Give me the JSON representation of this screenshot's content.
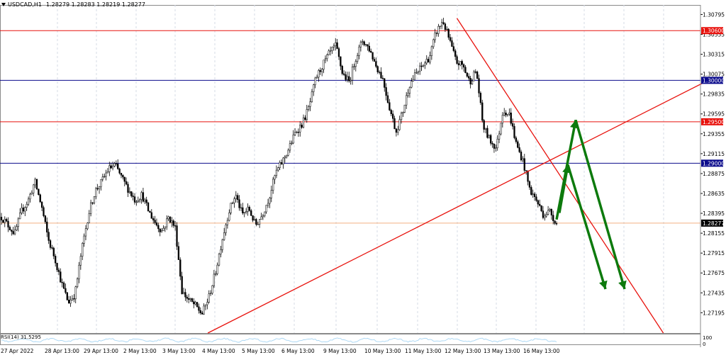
{
  "header": {
    "symbol_tf": "USDCAD,H1",
    "ohlc": "1.28279 1.28283 1.28219 1.28277"
  },
  "indicator": {
    "label": "RSI(14) 31.5295",
    "axis_top": "100",
    "axis_bottom": "0"
  },
  "colors": {
    "candle": "#000000",
    "red_line": "#e8130e",
    "blue_line": "#0b0b8c",
    "arrow": "#0d7a0d",
    "bid_line": "#f4b183",
    "rsi_line": "#a7d5f3",
    "grid": "#d6dbe4",
    "frame": "#8a8a8a"
  },
  "chart_data": {
    "type": "candlestick",
    "symbol": "USDCAD",
    "timeframe": "H1",
    "ylim": [
      1.2695,
      1.3091
    ],
    "y_ticks": [
      "1.30795",
      "1.30555",
      "1.30315",
      "1.30075",
      "1.29835",
      "1.29595",
      "1.29355",
      "1.29115",
      "1.28875",
      "1.28635",
      "1.28395",
      "1.28155",
      "1.27915",
      "1.27675",
      "1.27435",
      "1.27195"
    ],
    "x_ticks": [
      "27 Apr 2022",
      "28 Apr 13:00",
      "29 Apr 13:00",
      "2 May 13:00",
      "3 May 13:00",
      "4 May 13:00",
      "5 May 13:00",
      "6 May 13:00",
      "9 May 13:00",
      "10 May 13:00",
      "11 May 13:00",
      "12 May 13:00",
      "13 May 13:00",
      "16 May 13:00"
    ],
    "close_path": [
      1.2835,
      1.2825,
      1.2815,
      1.2842,
      1.2855,
      1.2878,
      1.2848,
      1.2808,
      1.2785,
      1.2755,
      1.2732,
      1.2742,
      1.2795,
      1.2838,
      1.2866,
      1.2878,
      1.2893,
      1.2898,
      1.2882,
      1.2868,
      1.2855,
      1.2862,
      1.2842,
      1.2828,
      1.2818,
      1.2835,
      1.2822,
      1.2745,
      1.2735,
      1.2728,
      1.2718,
      1.2738,
      1.2768,
      1.2808,
      1.2842,
      1.2862,
      1.2838,
      1.2845,
      1.2825,
      1.2838,
      1.2858,
      1.2888,
      1.2902,
      1.2918,
      1.2938,
      1.2948,
      1.2968,
      1.3002,
      1.3018,
      1.3032,
      1.3042,
      1.3008,
      1.2998,
      1.3028,
      1.3048,
      1.3038,
      1.3018,
      1.3002,
      1.2968,
      1.2938,
      1.2962,
      1.2995,
      1.3008,
      1.3018,
      1.3028,
      1.3058,
      1.3072,
      1.3048,
      1.3022,
      1.3018,
      1.2998,
      1.3012,
      1.2945,
      1.2928,
      1.2918,
      1.2965,
      1.2958,
      1.2922,
      1.2902,
      1.2868,
      1.2855,
      1.2838,
      1.2842,
      1.2827
    ],
    "h_lines": [
      {
        "price": 1.306,
        "label": "1.30600",
        "color": "red"
      },
      {
        "price": 1.3,
        "label": "1.30000",
        "color": "blue"
      },
      {
        "price": 1.295,
        "label": "1.29500",
        "color": "red"
      },
      {
        "price": 1.29,
        "label": "1.29000",
        "color": "blue"
      }
    ],
    "bid": {
      "price": 1.28277,
      "label": "1.28277"
    },
    "trendlines": [
      {
        "name": "ascending support",
        "from_bar": 0.29,
        "from_price": 1.2695,
        "to_bar": 1.0,
        "to_price": 1.3003
      },
      {
        "name": "descending resistance",
        "from_bar": 0.64,
        "from_price": 1.3075,
        "to_bar": 0.93,
        "to_price": 1.2695
      }
    ],
    "forecast_arrows": [
      {
        "from_price": 1.2832,
        "to_price": 1.2952,
        "then_price": 1.2748
      },
      {
        "from_price": 1.2898,
        "to_price": 1.2898,
        "then_price": 1.2748
      }
    ]
  }
}
